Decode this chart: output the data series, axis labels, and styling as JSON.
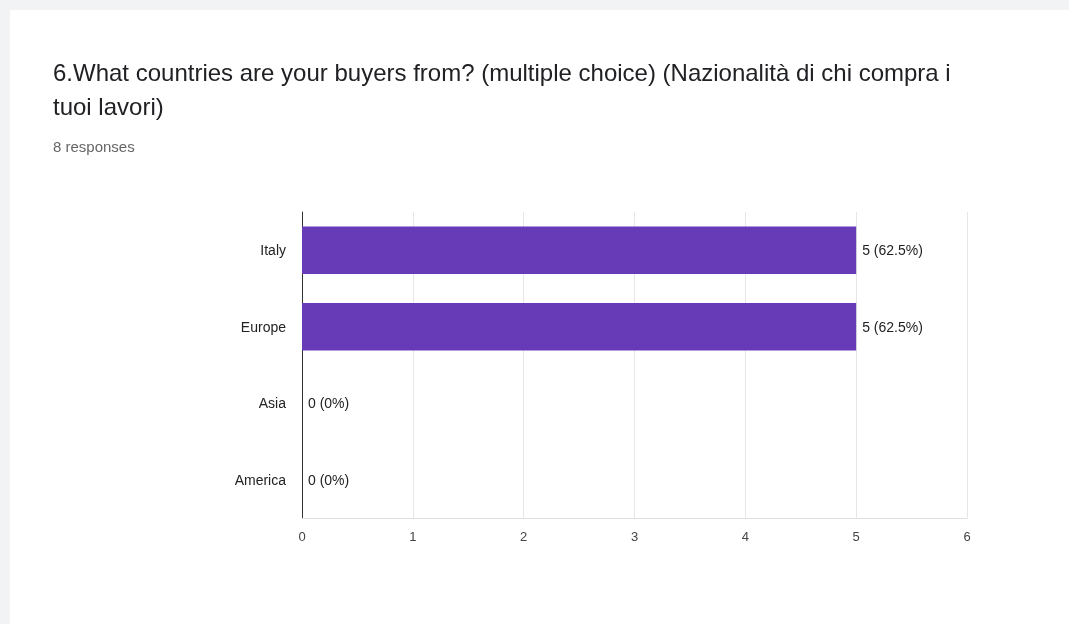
{
  "chart_data": {
    "type": "bar",
    "orientation": "horizontal",
    "title": "6.What countries are your buyers from? (multiple choice) (Nazionalità di chi compra i tuoi lavori)",
    "subtitle": "8 responses",
    "categories": [
      "Italy",
      "Europe",
      "Asia",
      "America"
    ],
    "values": [
      5,
      5,
      0,
      0
    ],
    "value_labels": [
      "5 (62.5%)",
      "5 (62.5%)",
      "0 (0%)",
      "0 (0%)"
    ],
    "color": "#673ab7",
    "xlim": [
      0,
      6
    ],
    "xticks": [
      0,
      1,
      2,
      3,
      4,
      5,
      6
    ],
    "grid": "x"
  }
}
